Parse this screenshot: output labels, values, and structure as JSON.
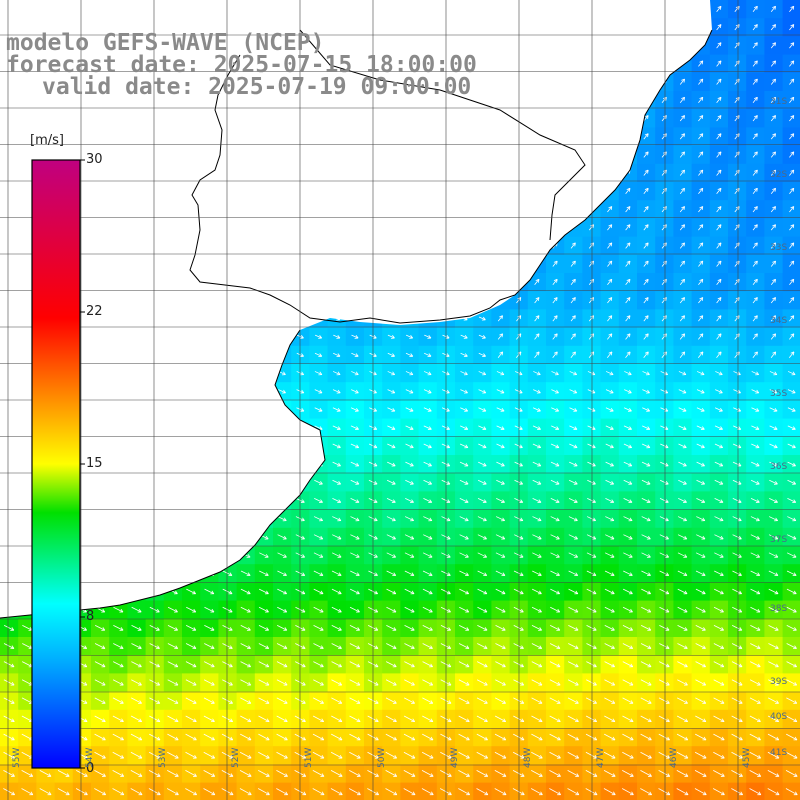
{
  "title": {
    "line1": "modelo GEFS-WAVE (NCEP)",
    "line2": "forecast date: 2025-07-15 18:00:00",
    "line3": "valid date: 2025-07-19 09:00:00"
  },
  "colorbar": {
    "unit": "[m/s]",
    "ticks": [
      "30",
      "22",
      "15",
      "8",
      "0"
    ],
    "min": 0,
    "max": 30,
    "colors": [
      "#0000ff",
      "#00b0ff",
      "#00ffff",
      "#00e000",
      "#ffff00",
      "#ff8000",
      "#ff0000",
      "#c00080"
    ]
  },
  "map": {
    "land_color": "#ffffff",
    "coast_color": "#000000",
    "grid_color": "#444444",
    "arrow_color": "#ffffff",
    "lat_labels": [
      "31S",
      "32S",
      "33S",
      "34S",
      "35S",
      "36S",
      "37S",
      "38S",
      "39S",
      "40S",
      "41S"
    ],
    "lon_labels": [
      "55W",
      "54W",
      "53W",
      "52W",
      "51W",
      "50W",
      "49W",
      "48W",
      "47W",
      "46W",
      "45W"
    ]
  }
}
